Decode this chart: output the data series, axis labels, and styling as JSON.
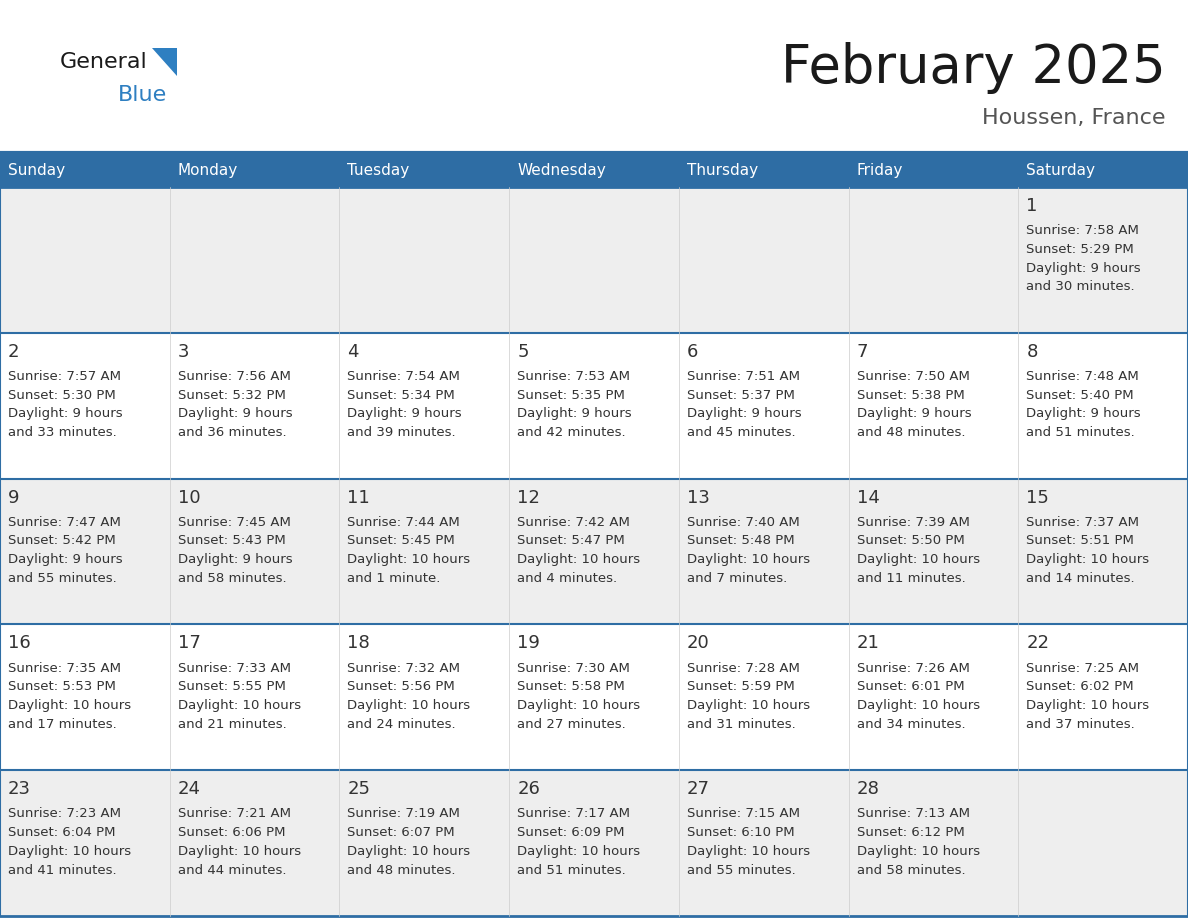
{
  "title": "February 2025",
  "subtitle": "Houssen, France",
  "days_of_week": [
    "Sunday",
    "Monday",
    "Tuesday",
    "Wednesday",
    "Thursday",
    "Friday",
    "Saturday"
  ],
  "header_bg": "#2e6da4",
  "header_text": "#ffffff",
  "row_bg_gray": "#eeeeee",
  "row_bg_white": "#ffffff",
  "border_color": "#2e6da4",
  "day_number_color": "#333333",
  "cell_text_color": "#333333",
  "title_color": "#1a1a1a",
  "subtitle_color": "#555555",
  "logo_general_color": "#1a1a1a",
  "logo_blue_color": "#2e7fc1",
  "calendar_data": [
    [
      null,
      null,
      null,
      null,
      null,
      null,
      {
        "day": "1",
        "sunrise": "7:58 AM",
        "sunset": "5:29 PM",
        "daylight1": "9 hours",
        "daylight2": "and 30 minutes."
      }
    ],
    [
      {
        "day": "2",
        "sunrise": "7:57 AM",
        "sunset": "5:30 PM",
        "daylight1": "9 hours",
        "daylight2": "and 33 minutes."
      },
      {
        "day": "3",
        "sunrise": "7:56 AM",
        "sunset": "5:32 PM",
        "daylight1": "9 hours",
        "daylight2": "and 36 minutes."
      },
      {
        "day": "4",
        "sunrise": "7:54 AM",
        "sunset": "5:34 PM",
        "daylight1": "9 hours",
        "daylight2": "and 39 minutes."
      },
      {
        "day": "5",
        "sunrise": "7:53 AM",
        "sunset": "5:35 PM",
        "daylight1": "9 hours",
        "daylight2": "and 42 minutes."
      },
      {
        "day": "6",
        "sunrise": "7:51 AM",
        "sunset": "5:37 PM",
        "daylight1": "9 hours",
        "daylight2": "and 45 minutes."
      },
      {
        "day": "7",
        "sunrise": "7:50 AM",
        "sunset": "5:38 PM",
        "daylight1": "9 hours",
        "daylight2": "and 48 minutes."
      },
      {
        "day": "8",
        "sunrise": "7:48 AM",
        "sunset": "5:40 PM",
        "daylight1": "9 hours",
        "daylight2": "and 51 minutes."
      }
    ],
    [
      {
        "day": "9",
        "sunrise": "7:47 AM",
        "sunset": "5:42 PM",
        "daylight1": "9 hours",
        "daylight2": "and 55 minutes."
      },
      {
        "day": "10",
        "sunrise": "7:45 AM",
        "sunset": "5:43 PM",
        "daylight1": "9 hours",
        "daylight2": "and 58 minutes."
      },
      {
        "day": "11",
        "sunrise": "7:44 AM",
        "sunset": "5:45 PM",
        "daylight1": "10 hours",
        "daylight2": "and 1 minute."
      },
      {
        "day": "12",
        "sunrise": "7:42 AM",
        "sunset": "5:47 PM",
        "daylight1": "10 hours",
        "daylight2": "and 4 minutes."
      },
      {
        "day": "13",
        "sunrise": "7:40 AM",
        "sunset": "5:48 PM",
        "daylight1": "10 hours",
        "daylight2": "and 7 minutes."
      },
      {
        "day": "14",
        "sunrise": "7:39 AM",
        "sunset": "5:50 PM",
        "daylight1": "10 hours",
        "daylight2": "and 11 minutes."
      },
      {
        "day": "15",
        "sunrise": "7:37 AM",
        "sunset": "5:51 PM",
        "daylight1": "10 hours",
        "daylight2": "and 14 minutes."
      }
    ],
    [
      {
        "day": "16",
        "sunrise": "7:35 AM",
        "sunset": "5:53 PM",
        "daylight1": "10 hours",
        "daylight2": "and 17 minutes."
      },
      {
        "day": "17",
        "sunrise": "7:33 AM",
        "sunset": "5:55 PM",
        "daylight1": "10 hours",
        "daylight2": "and 21 minutes."
      },
      {
        "day": "18",
        "sunrise": "7:32 AM",
        "sunset": "5:56 PM",
        "daylight1": "10 hours",
        "daylight2": "and 24 minutes."
      },
      {
        "day": "19",
        "sunrise": "7:30 AM",
        "sunset": "5:58 PM",
        "daylight1": "10 hours",
        "daylight2": "and 27 minutes."
      },
      {
        "day": "20",
        "sunrise": "7:28 AM",
        "sunset": "5:59 PM",
        "daylight1": "10 hours",
        "daylight2": "and 31 minutes."
      },
      {
        "day": "21",
        "sunrise": "7:26 AM",
        "sunset": "6:01 PM",
        "daylight1": "10 hours",
        "daylight2": "and 34 minutes."
      },
      {
        "day": "22",
        "sunrise": "7:25 AM",
        "sunset": "6:02 PM",
        "daylight1": "10 hours",
        "daylight2": "and 37 minutes."
      }
    ],
    [
      {
        "day": "23",
        "sunrise": "7:23 AM",
        "sunset": "6:04 PM",
        "daylight1": "10 hours",
        "daylight2": "and 41 minutes."
      },
      {
        "day": "24",
        "sunrise": "7:21 AM",
        "sunset": "6:06 PM",
        "daylight1": "10 hours",
        "daylight2": "and 44 minutes."
      },
      {
        "day": "25",
        "sunrise": "7:19 AM",
        "sunset": "6:07 PM",
        "daylight1": "10 hours",
        "daylight2": "and 48 minutes."
      },
      {
        "day": "26",
        "sunrise": "7:17 AM",
        "sunset": "6:09 PM",
        "daylight1": "10 hours",
        "daylight2": "and 51 minutes."
      },
      {
        "day": "27",
        "sunrise": "7:15 AM",
        "sunset": "6:10 PM",
        "daylight1": "10 hours",
        "daylight2": "and 55 minutes."
      },
      {
        "day": "28",
        "sunrise": "7:13 AM",
        "sunset": "6:12 PM",
        "daylight1": "10 hours",
        "daylight2": "and 58 minutes."
      },
      null
    ]
  ]
}
